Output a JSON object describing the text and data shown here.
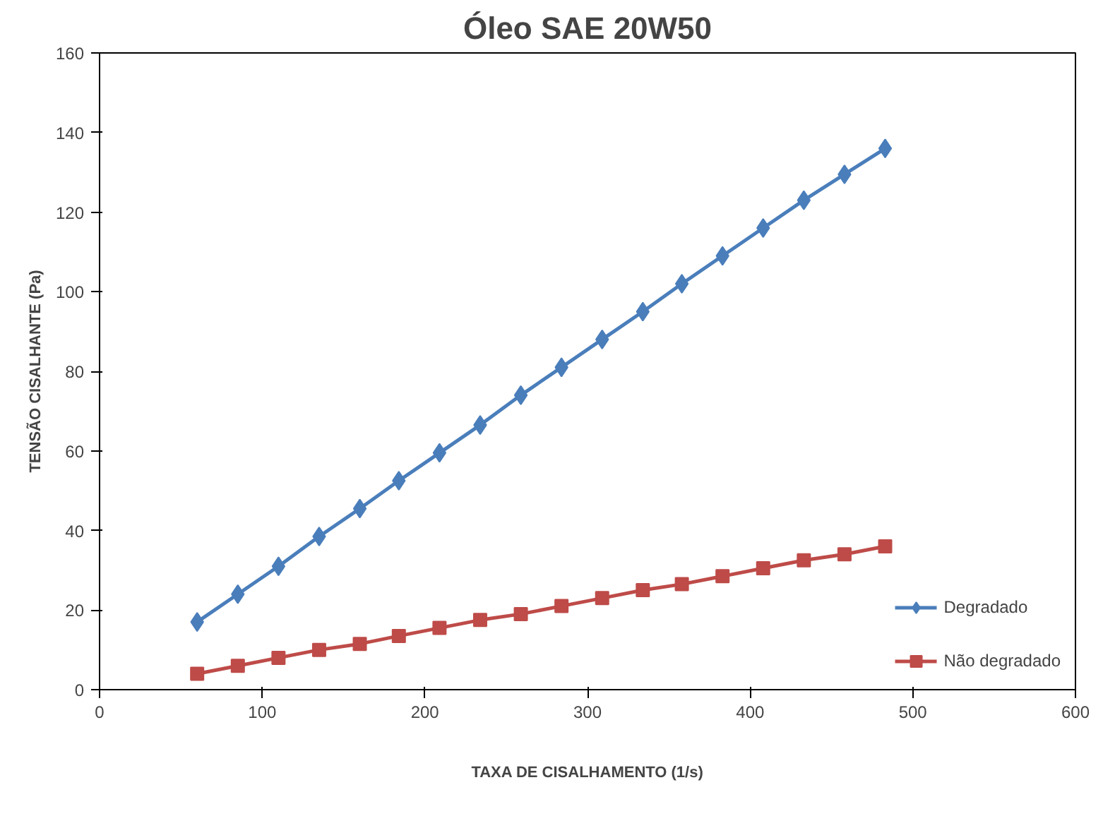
{
  "chart_data": {
    "type": "line",
    "title": "Óleo SAE 20W50",
    "xlabel": "TAXA DE CISALHAMENTO (1/s)",
    "ylabel": "TENSÃO CISALHANTE (Pa)",
    "x": [
      60,
      85,
      110,
      135,
      160,
      184,
      209,
      234,
      259,
      284,
      309,
      334,
      358,
      383,
      408,
      433,
      458,
      483
    ],
    "series": [
      {
        "name": "Degradado",
        "color": "#4a7ebb",
        "marker": "diamond",
        "values": [
          17,
          24,
          31,
          38.5,
          45.5,
          52.5,
          59.5,
          66.5,
          74,
          81,
          88,
          95,
          102,
          109,
          116,
          123,
          129.5,
          136
        ]
      },
      {
        "name": "Não degradado",
        "color": "#be4b48",
        "marker": "square",
        "values": [
          4,
          6,
          8,
          10,
          11.5,
          13.5,
          15.5,
          17.5,
          19,
          21,
          23,
          25,
          26.5,
          28.5,
          30.5,
          32.5,
          34,
          36
        ]
      }
    ],
    "xlim": [
      0,
      600
    ],
    "xticks": [
      0,
      100,
      200,
      300,
      400,
      500,
      600
    ],
    "ylim": [
      0,
      160
    ],
    "yticks": [
      0,
      20,
      40,
      60,
      80,
      100,
      120,
      140,
      160
    ],
    "grid": false,
    "legend": "right",
    "line_style": "solid"
  }
}
